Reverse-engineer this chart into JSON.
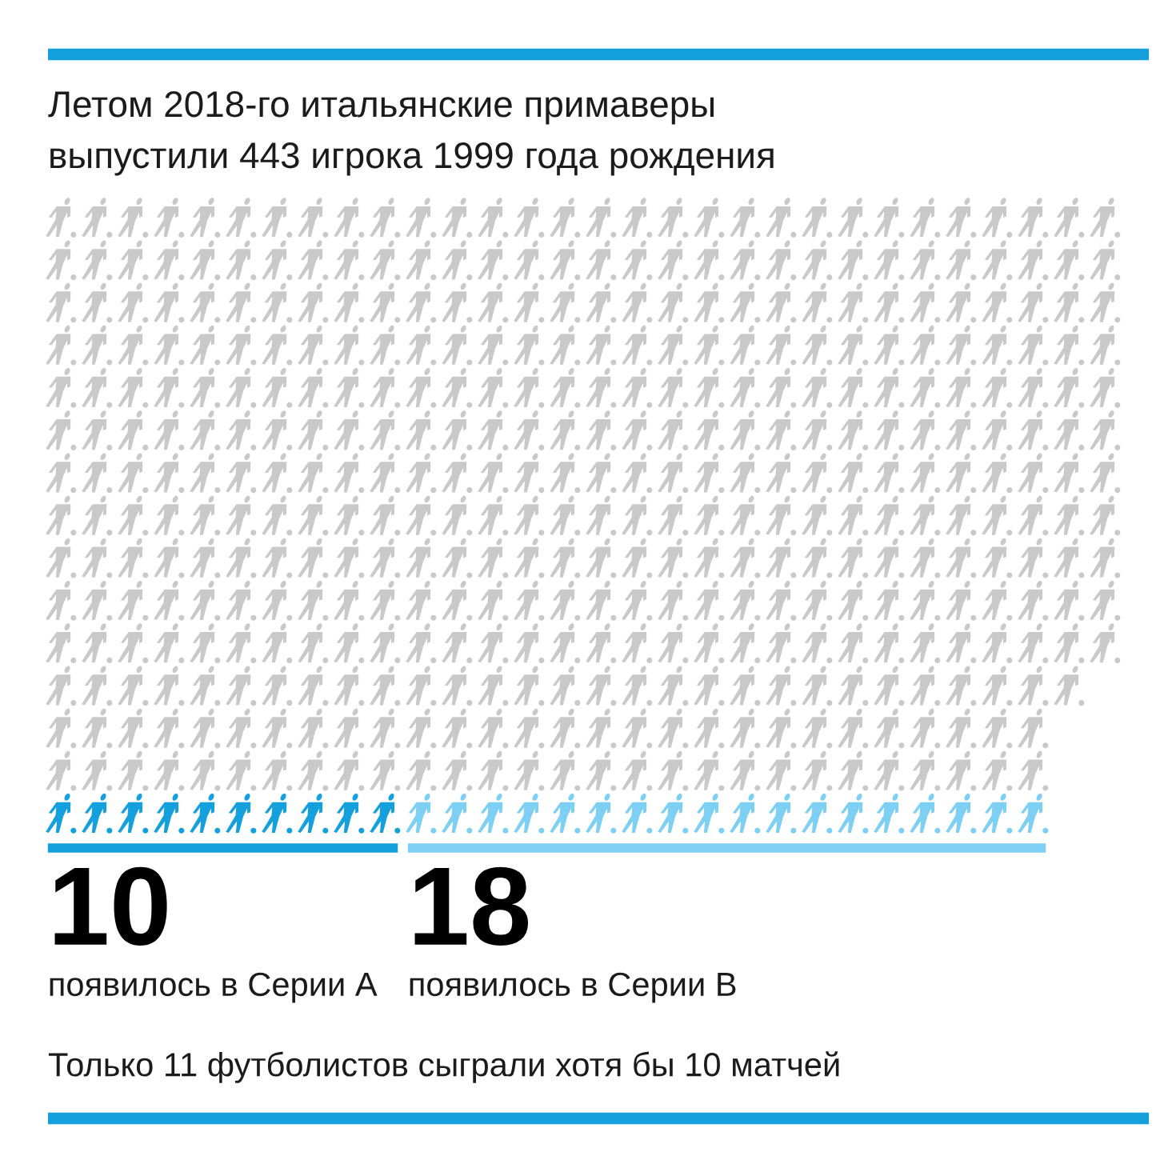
{
  "chart_data": {
    "type": "other",
    "title": "Летом 2018-го итальянские примаверы",
    "categories": [
      null,
      "появилось в Серии А",
      "появилось в Серии В"
    ],
    "values": [
      443,
      10,
      18
    ],
    "value_labels": [
      "выпустили 443 игрока 1999 года рождения",
      "10",
      "18"
    ],
    "colors": [
      "#c9c9c9",
      "#14a0dd",
      "#7dcff3"
    ],
    "annotations": [
      "Только 11 футболистов сыграли хотя бы 10 матчей"
    ]
  }
}
